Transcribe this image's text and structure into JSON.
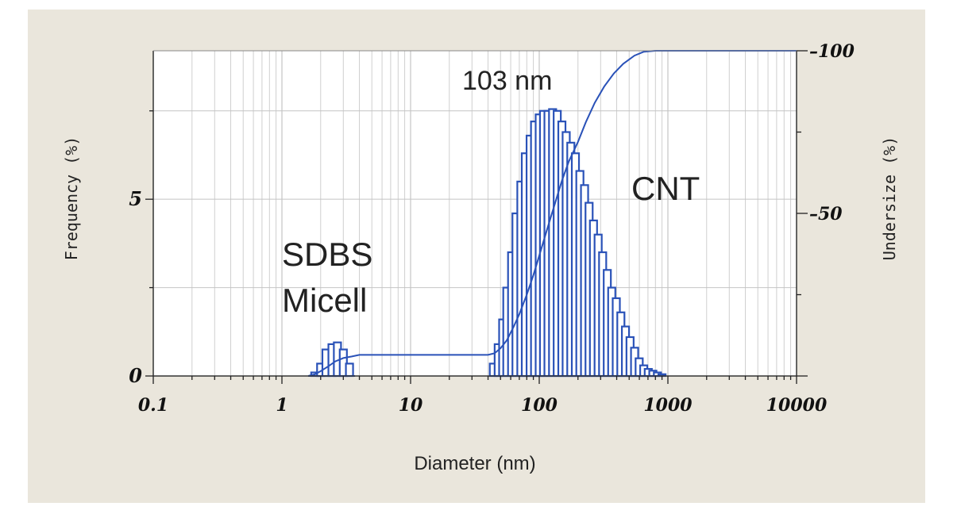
{
  "chart_data": {
    "type": "bar",
    "title": "",
    "xlabel": "Diameter (nm)",
    "ylabel": "Frequency (%)",
    "y2label": "Undersize (%)",
    "xscale": "log",
    "xlim": [
      0.1,
      10000
    ],
    "ylim": [
      0,
      9.2
    ],
    "y2lim": [
      0,
      100
    ],
    "x_ticks": [
      "0.1",
      "1",
      "10",
      "100",
      "1000",
      "10000"
    ],
    "y_ticks": [
      "0",
      "5"
    ],
    "y2_ticks": [
      "100",
      "50"
    ],
    "grid": true,
    "annotations": {
      "peak": "103 nm",
      "cnt": "CNT",
      "micelle_line1": "SDBS",
      "micelle_line2": "Micell"
    },
    "series": [
      {
        "kind": "histogram",
        "color": "#2a52b8",
        "bins": [
          {
            "x": 1.8,
            "y": 0.1
          },
          {
            "x": 2.0,
            "y": 0.35
          },
          {
            "x": 2.2,
            "y": 0.75
          },
          {
            "x": 2.45,
            "y": 0.9
          },
          {
            "x": 2.7,
            "y": 0.95
          },
          {
            "x": 3.0,
            "y": 0.75
          },
          {
            "x": 3.35,
            "y": 0.35
          },
          {
            "x": 44,
            "y": 0.35
          },
          {
            "x": 48,
            "y": 0.9
          },
          {
            "x": 52,
            "y": 1.6
          },
          {
            "x": 56,
            "y": 2.5
          },
          {
            "x": 61,
            "y": 3.5
          },
          {
            "x": 66,
            "y": 4.6
          },
          {
            "x": 72,
            "y": 5.5
          },
          {
            "x": 78,
            "y": 6.3
          },
          {
            "x": 85,
            "y": 6.8
          },
          {
            "x": 92,
            "y": 7.2
          },
          {
            "x": 100,
            "y": 7.4
          },
          {
            "x": 108,
            "y": 7.5
          },
          {
            "x": 117,
            "y": 7.5
          },
          {
            "x": 127,
            "y": 7.55
          },
          {
            "x": 138,
            "y": 7.5
          },
          {
            "x": 150,
            "y": 7.2
          },
          {
            "x": 162,
            "y": 6.9
          },
          {
            "x": 176,
            "y": 6.6
          },
          {
            "x": 191,
            "y": 6.3
          },
          {
            "x": 207,
            "y": 5.8
          },
          {
            "x": 225,
            "y": 5.4
          },
          {
            "x": 244,
            "y": 4.9
          },
          {
            "x": 264,
            "y": 4.4
          },
          {
            "x": 287,
            "y": 4.0
          },
          {
            "x": 311,
            "y": 3.5
          },
          {
            "x": 338,
            "y": 3.0
          },
          {
            "x": 366,
            "y": 2.5
          },
          {
            "x": 397,
            "y": 2.2
          },
          {
            "x": 431,
            "y": 1.8
          },
          {
            "x": 468,
            "y": 1.4
          },
          {
            "x": 508,
            "y": 1.1
          },
          {
            "x": 551,
            "y": 0.8
          },
          {
            "x": 598,
            "y": 0.5
          },
          {
            "x": 649,
            "y": 0.3
          },
          {
            "x": 704,
            "y": 0.2
          },
          {
            "x": 764,
            "y": 0.15
          },
          {
            "x": 829,
            "y": 0.1
          },
          {
            "x": 900,
            "y": 0.05
          }
        ]
      },
      {
        "kind": "cumulative",
        "color": "#2a52b8",
        "x": [
          1.6,
          1.8,
          2.0,
          2.3,
          2.6,
          3.0,
          3.5,
          4.0,
          10,
          40,
          45,
          50,
          56,
          63,
          70,
          80,
          90,
          100,
          115,
          130,
          150,
          170,
          200,
          230,
          270,
          320,
          380,
          450,
          550,
          650,
          800,
          1000,
          10000
        ],
        "y": [
          0,
          0.5,
          1.5,
          3,
          4.5,
          5.5,
          6,
          6.5,
          6.5,
          6.5,
          7,
          8.5,
          11,
          15,
          19,
          25,
          31,
          37,
          45,
          52,
          60,
          66,
          72,
          78,
          84,
          89,
          93,
          96,
          98.5,
          99.7,
          100,
          100,
          100
        ]
      }
    ]
  }
}
